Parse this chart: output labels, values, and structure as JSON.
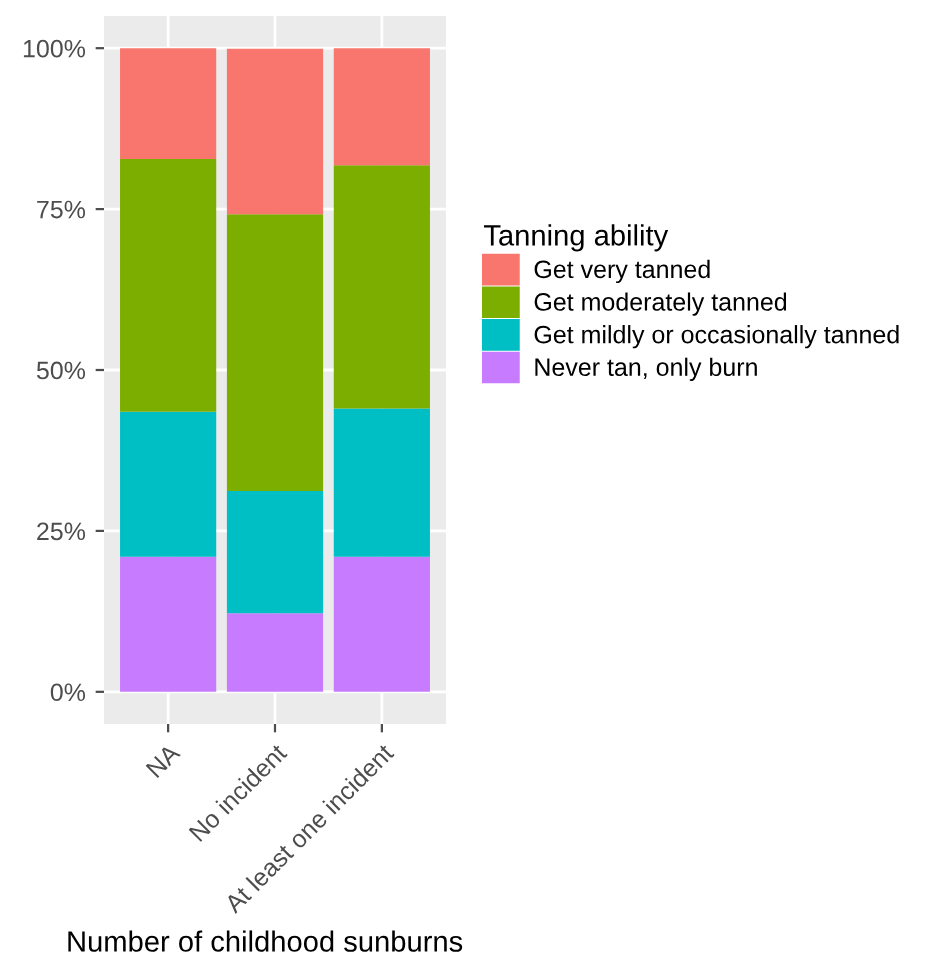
{
  "chart_data": {
    "type": "bar",
    "stacked": true,
    "xlabel": "Number of childhood sunburns",
    "legend_title": "Tanning ability",
    "legend": "right",
    "grid": true,
    "categories": [
      "NA",
      "No incident",
      "At least one incident"
    ],
    "ylim": [
      -0.05,
      1.05
    ],
    "yticks": [
      {
        "value": 0,
        "label": "0%"
      },
      {
        "value": 0.25,
        "label": "25%"
      },
      {
        "value": 0.5,
        "label": "50%"
      },
      {
        "value": 0.75,
        "label": "75%"
      },
      {
        "value": 1,
        "label": "100%"
      }
    ],
    "series": [
      {
        "name": "Never tan, only burn",
        "color": "#c77cff",
        "values": [
          0.21,
          0.122,
          0.21
        ]
      },
      {
        "name": "Get mildly or occasionally tanned",
        "color": "#00bfc4",
        "values": [
          0.225,
          0.19,
          0.23
        ]
      },
      {
        "name": "Get moderately tanned",
        "color": "#7cae00",
        "values": [
          0.393,
          0.43,
          0.378
        ]
      },
      {
        "name": "Get very tanned",
        "color": "#f8766d",
        "values": [
          0.172,
          0.257,
          0.182
        ]
      }
    ]
  }
}
